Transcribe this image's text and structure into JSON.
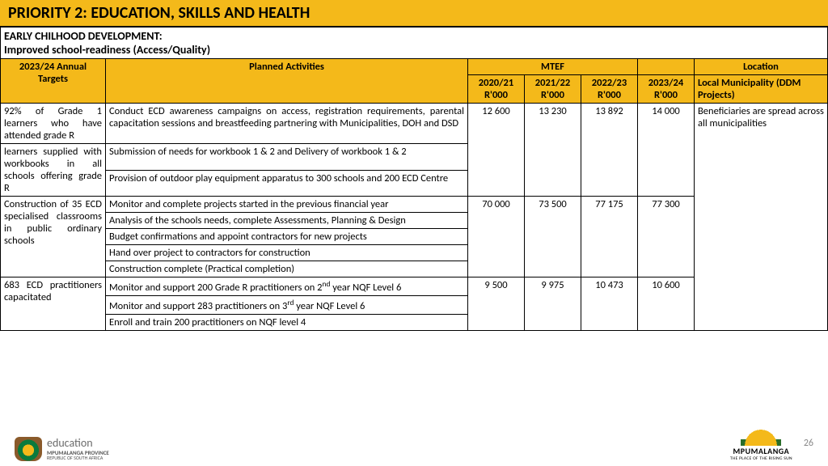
{
  "title": "PRIORITY 2: EDUCATION, SKILLS AND HEALTH",
  "subheader": {
    "line1": "EARLY CHILHOOD DEVELOPMENT:",
    "line2": "Improved school-readiness (Access/Quality)"
  },
  "headers": {
    "targets": "2023/24 Annual Targets",
    "activities": "Planned Activities",
    "mtef": "MTEF",
    "location": "Location",
    "y1": "2020/21 R'000",
    "y2": "2021/22 R'000",
    "y3": "2022/23 R'000",
    "y4": "2023/24 R'000",
    "loc_sub": "Local Municipality (DDM Projects)"
  },
  "groups": [
    {
      "targets": [
        "92% of Grade 1 learners who have attended grade R",
        "learners supplied with workbooks in all schools offering grade R"
      ],
      "activities": [
        "Conduct ECD awareness campaigns on access, registration requirements, parental capacitation sessions and breastfeeding partnering with Municipalities, DOH and DSD",
        "Submission of needs for workbook 1 & 2  and Delivery of workbook 1 & 2",
        "Provision of outdoor play equipment apparatus to 300 schools and 200 ECD Centre"
      ],
      "mtef": [
        "12 600",
        "13 230",
        "13 892",
        "14 000"
      ]
    },
    {
      "targets": [
        "Construction of 35 ECD specialised classrooms in public ordinary schools"
      ],
      "activities": [
        "Monitor and complete projects started in the previous financial year",
        "Analysis of the schools needs, complete Assessments, Planning & Design",
        "Budget confirmations and appoint contractors for new projects",
        "Hand over project to contractors for construction",
        "Construction complete (Practical completion)"
      ],
      "mtef": [
        "70  000",
        "73 500",
        "77 175",
        "77 300"
      ]
    },
    {
      "targets": [
        "683 ECD practitioners capacitated"
      ],
      "activities": [
        "Monitor and support 200 Grade R practitioners on 2|nd| year NQF Level 6",
        "Monitor and support  283 practitioners on 3|rd| year NQF Level 6",
        "Enroll and train 200 practitioners on NQF level 4"
      ],
      "mtef": [
        "9 500",
        "9 975",
        "10 473",
        "10 600"
      ]
    }
  ],
  "location_value": "Beneficiaries are spread across all municipalities",
  "footer": {
    "edu": "education",
    "province": "MPUMALANGA PROVINCE",
    "republic": "REPUBLIC OF SOUTH AFRICA",
    "mpum": "MPUMALANGA",
    "mpum_sub": "THE PLACE OF THE RISING SUN",
    "page": "26"
  },
  "style": {
    "accent": "#f4b91a",
    "border": "#000000",
    "text": "#000000",
    "muted": "#888888"
  }
}
